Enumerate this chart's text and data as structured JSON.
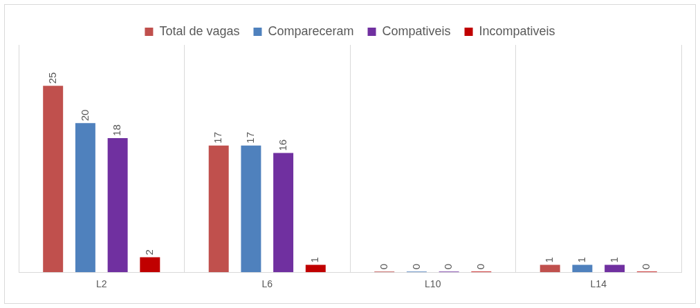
{
  "chart_data": {
    "type": "bar",
    "categories": [
      "L2",
      "L6",
      "L10",
      "L14"
    ],
    "series": [
      {
        "name": "Total de vagas",
        "color": "#c0504d",
        "values": [
          25,
          17,
          0,
          1
        ]
      },
      {
        "name": "Compareceram",
        "color": "#4f81bd",
        "values": [
          20,
          17,
          0,
          1
        ]
      },
      {
        "name": "Compativeis",
        "color": "#7030a0",
        "values": [
          18,
          16,
          0,
          1
        ]
      },
      {
        "name": "Incompativeis",
        "color": "#c00000",
        "values": [
          2,
          1,
          0,
          0
        ]
      }
    ],
    "data_labels": true,
    "grid": "x",
    "legend": "top"
  }
}
